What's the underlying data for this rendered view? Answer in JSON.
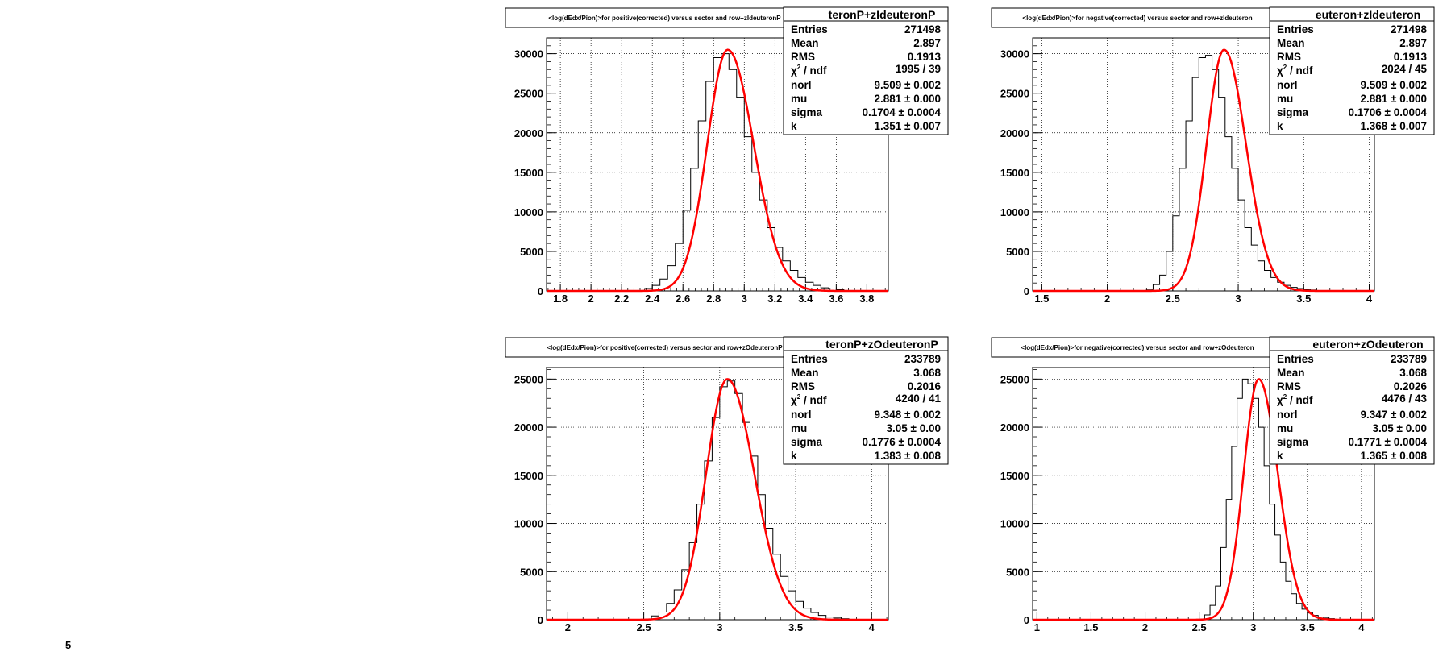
{
  "chart_data": [
    {
      "type": "bar",
      "name": "teronP+zIdeuteronP",
      "title": "<log(dEdx/Pion)>for positive(corrected) versus sector and row+zIdeuteronP",
      "xlim": [
        1.71,
        3.94
      ],
      "ylim": [
        0,
        32000
      ],
      "xticks": [
        "1.8",
        "2",
        "2.2",
        "2.4",
        "2.6",
        "2.8",
        "3",
        "3.2",
        "3.4",
        "3.6",
        "3.8"
      ],
      "yticks": [
        "0",
        "5000",
        "10000",
        "15000",
        "20000",
        "25000",
        "30000"
      ],
      "grid": true,
      "stats": {
        "Entries": "271498",
        "Mean": "2.897",
        "RMS": "0.1913",
        "chi2_ndf": "1995 / 39",
        "norl": "9.509 ± 0.002",
        "mu": "2.881 ± 0.000",
        "sigma": "0.1704 ± 0.0004",
        "k": "1.351 ± 0.007"
      },
      "fit": {
        "peak": 30500,
        "mu": 2.892,
        "sigma_left": 0.134,
        "sigma_right": 0.17
      },
      "hist": {
        "start": 2.35,
        "width": 0.05,
        "values": [
          300,
          700,
          1500,
          3200,
          6000,
          10200,
          15500,
          21500,
          26500,
          29500,
          30000,
          28000,
          24500,
          19500,
          15000,
          11500,
          8000,
          5500,
          3800,
          2600,
          1700,
          1100,
          700,
          400,
          250,
          150
        ]
      }
    },
    {
      "type": "bar",
      "name": "euteron+zIdeuteron",
      "title": "<log(dEdx/Pion)>for negative(corrected) versus sector and row+zIdeuteron",
      "xlim": [
        1.43,
        4.04
      ],
      "ylim": [
        0,
        32000
      ],
      "xticks": [
        "1.5",
        "2",
        "2.5",
        "3",
        "3.5",
        "4"
      ],
      "yticks": [
        "0",
        "5000",
        "10000",
        "15000",
        "20000",
        "25000",
        "30000"
      ],
      "grid": true,
      "stats": {
        "Entries": "271498",
        "Mean": "2.897",
        "RMS": "0.1913",
        "chi2_ndf": "2024 / 45",
        "norl": "9.509 ± 0.002",
        "mu": "2.881 ± 0.000",
        "sigma": "0.1706 ± 0.0004",
        "k": "1.368 ± 0.007"
      },
      "fit": {
        "peak": 30500,
        "mu": 2.892,
        "sigma_left": 0.134,
        "sigma_right": 0.168
      },
      "hist": {
        "start": 2.3,
        "width": 0.05,
        "values": [
          200,
          800,
          2000,
          5000,
          9500,
          15500,
          21500,
          27000,
          29500,
          29800,
          28000,
          24500,
          19500,
          15500,
          11500,
          8000,
          5800,
          3800,
          2600,
          1700,
          1100,
          700,
          450,
          300,
          200,
          120
        ]
      }
    },
    {
      "type": "bar",
      "name": "teronP+zOdeuteronP",
      "title": "<log(dEdx/Pion)>for positive(corrected) versus sector and row+zOdeuteronP",
      "xlim": [
        1.86,
        4.11
      ],
      "ylim": [
        0,
        26200
      ],
      "xticks": [
        "2",
        "2.5",
        "3",
        "3.5",
        "4"
      ],
      "yticks": [
        "0",
        "5000",
        "10000",
        "15000",
        "20000",
        "25000"
      ],
      "grid": true,
      "stats": {
        "Entries": "233789",
        "Mean": "3.068",
        "RMS": "0.2016",
        "chi2_ndf": "4240 / 41",
        "norl": "9.348 ± 0.002",
        "mu": "3.05 ± 0.00",
        "sigma": "0.1776 ± 0.0004",
        "k": "1.383 ± 0.008"
      },
      "fit": {
        "peak": 25000,
        "mu": 3.05,
        "sigma_left": 0.14,
        "sigma_right": 0.178
      },
      "hist": {
        "start": 2.55,
        "width": 0.05,
        "values": [
          400,
          800,
          1700,
          3100,
          5200,
          8000,
          12000,
          16500,
          21000,
          24200,
          24800,
          23500,
          20500,
          17000,
          13000,
          9500,
          6800,
          4500,
          3000,
          1900,
          1200,
          750,
          450,
          280,
          180,
          100
        ]
      }
    },
    {
      "type": "bar",
      "name": "euteron+zOdeuteron",
      "title": "<log(dEdx/Pion)>for negative(corrected) versus sector and row+zOdeuteron",
      "xlim": [
        0.96,
        4.12
      ],
      "ylim": [
        0,
        26200
      ],
      "xticks": [
        "1",
        "1.5",
        "2",
        "2.5",
        "3",
        "3.5",
        "4"
      ],
      "yticks": [
        "0",
        "5000",
        "10000",
        "15000",
        "20000",
        "25000"
      ],
      "grid": true,
      "stats": {
        "Entries": "233789",
        "Mean": "3.068",
        "RMS": "0.2026",
        "chi2_ndf": "4476 / 43",
        "norl": "9.347 ± 0.002",
        "mu": "3.05 ± 0.00",
        "sigma": "0.1771 ± 0.0004",
        "k": "1.365 ± 0.008"
      },
      "fit": {
        "peak": 25000,
        "mu": 3.05,
        "sigma_left": 0.14,
        "sigma_right": 0.178
      },
      "hist": {
        "start": 2.55,
        "width": 0.05,
        "values": [
          500,
          1500,
          3500,
          7500,
          12500,
          18000,
          23000,
          25000,
          24500,
          23000,
          20000,
          16000,
          12000,
          8800,
          6000,
          4000,
          2700,
          1700,
          1100,
          700,
          450,
          280,
          180,
          110
        ]
      }
    }
  ],
  "corner_mark": "5"
}
